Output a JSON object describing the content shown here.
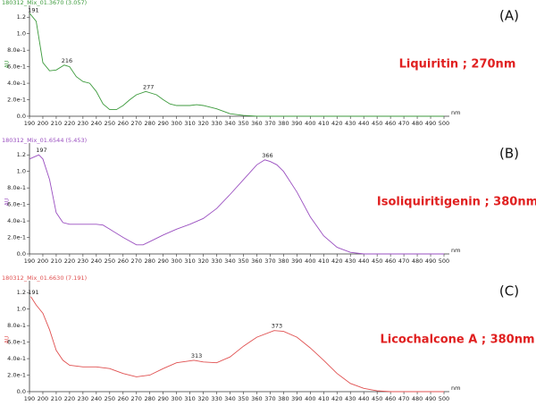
{
  "chart_data": [
    {
      "type": "line",
      "title": "180312_Mix_01.3670 (3.057)",
      "panel_label": "(A)",
      "annotation": "Liquiritin ; 270nm",
      "x_unit": "nm",
      "y_label": "AU",
      "peaks": [
        191,
        216,
        277
      ],
      "x": [
        190,
        195,
        200,
        205,
        210,
        216,
        220,
        225,
        230,
        235,
        240,
        245,
        250,
        255,
        260,
        265,
        270,
        277,
        285,
        290,
        295,
        300,
        310,
        315,
        320,
        330,
        340,
        350,
        360,
        400,
        450,
        500
      ],
      "series": [
        {
          "color": "#3c9a3c",
          "values": [
            1.25,
            1.15,
            0.65,
            0.55,
            0.56,
            0.62,
            0.6,
            0.48,
            0.42,
            0.4,
            0.3,
            0.15,
            0.08,
            0.08,
            0.13,
            0.2,
            0.26,
            0.3,
            0.26,
            0.2,
            0.15,
            0.13,
            0.13,
            0.14,
            0.13,
            0.09,
            0.03,
            0.01,
            0,
            0,
            0,
            0
          ]
        }
      ],
      "xlim": [
        190,
        500
      ],
      "ylim": [
        0,
        1.3
      ],
      "xticks": [
        190,
        200,
        210,
        220,
        230,
        240,
        250,
        260,
        270,
        280,
        290,
        300,
        310,
        320,
        330,
        340,
        350,
        360,
        370,
        380,
        390,
        400,
        410,
        420,
        430,
        440,
        450,
        460,
        470,
        480,
        490,
        500
      ],
      "yticks": [
        {
          "value": 0,
          "label": "0.0"
        },
        {
          "value": 0.2,
          "label": "2.0e-1"
        },
        {
          "value": 0.4,
          "label": "4.0e-1"
        },
        {
          "value": 0.6,
          "label": "6.0e-1"
        },
        {
          "value": 0.8,
          "label": "8.0e-1"
        },
        {
          "value": 1,
          "label": "1.0"
        },
        1.2
      ]
    },
    {
      "type": "line",
      "title": "180312_Mix_01.6544 (5.453)",
      "panel_label": "(B)",
      "annotation": "Isoliquiritigenin ; 380nm",
      "x_unit": "nm",
      "y_label": "AU",
      "peaks": [
        197,
        366
      ],
      "x": [
        190,
        197,
        200,
        205,
        210,
        215,
        220,
        240,
        245,
        250,
        260,
        270,
        275,
        280,
        290,
        300,
        310,
        320,
        330,
        340,
        350,
        360,
        366,
        370,
        375,
        380,
        390,
        400,
        410,
        420,
        430,
        440,
        500
      ],
      "series": [
        {
          "color": "#9a4fc0",
          "values": [
            1.15,
            1.2,
            1.15,
            0.9,
            0.5,
            0.38,
            0.36,
            0.36,
            0.35,
            0.3,
            0.2,
            0.11,
            0.11,
            0.15,
            0.23,
            0.3,
            0.36,
            0.43,
            0.55,
            0.72,
            0.9,
            1.08,
            1.14,
            1.12,
            1.08,
            1.0,
            0.75,
            0.45,
            0.22,
            0.08,
            0.02,
            0,
            0
          ]
        }
      ],
      "xlim": [
        190,
        500
      ],
      "ylim": [
        0,
        1.3
      ],
      "xticks": [
        190,
        200,
        210,
        220,
        230,
        240,
        250,
        260,
        270,
        280,
        290,
        300,
        310,
        320,
        330,
        340,
        350,
        360,
        370,
        380,
        390,
        400,
        410,
        420,
        430,
        440,
        450,
        460,
        470,
        480,
        490,
        500
      ],
      "yticks": [
        {
          "value": 0,
          "label": "0.0"
        },
        {
          "value": 0.2,
          "label": "2.0e-1"
        },
        {
          "value": 0.4,
          "label": "4.0e-1"
        },
        {
          "value": 0.6,
          "label": "6.0e-1"
        },
        {
          "value": 0.8,
          "label": "8.0e-1"
        },
        {
          "value": 1,
          "label": "1.0"
        },
        1.2
      ]
    },
    {
      "type": "line",
      "title": "180312_Mix_01.6630 (7.191)",
      "panel_label": "(C)",
      "annotation": "Licochalcone A ; 380nm",
      "x_unit": "nm",
      "y_label": "AU",
      "peaks": [
        191,
        313,
        373
      ],
      "x": [
        191,
        195,
        200,
        205,
        210,
        215,
        220,
        230,
        240,
        250,
        260,
        270,
        280,
        290,
        300,
        313,
        320,
        330,
        340,
        350,
        360,
        373,
        380,
        390,
        400,
        410,
        420,
        430,
        440,
        450,
        460,
        500
      ],
      "series": [
        {
          "color": "#e05050",
          "values": [
            1.15,
            1.05,
            0.95,
            0.75,
            0.5,
            0.38,
            0.32,
            0.3,
            0.3,
            0.28,
            0.22,
            0.18,
            0.2,
            0.28,
            0.35,
            0.38,
            0.36,
            0.35,
            0.42,
            0.55,
            0.66,
            0.74,
            0.73,
            0.66,
            0.53,
            0.38,
            0.22,
            0.1,
            0.04,
            0.01,
            0,
            0
          ]
        }
      ],
      "xlim": [
        190,
        500
      ],
      "ylim": [
        0,
        1.3
      ],
      "xticks": [
        190,
        200,
        210,
        220,
        230,
        240,
        250,
        260,
        270,
        280,
        290,
        300,
        310,
        320,
        330,
        340,
        350,
        360,
        370,
        380,
        390,
        400,
        410,
        420,
        430,
        440,
        450,
        460,
        470,
        480,
        490,
        500
      ],
      "yticks": [
        {
          "value": 0,
          "label": "0.0"
        },
        {
          "value": 0.2,
          "label": "2.0e-1"
        },
        {
          "value": 0.4,
          "label": "4.0e-1"
        },
        {
          "value": 0.6,
          "label": "6.0e-1"
        },
        {
          "value": 0.8,
          "label": "8.0e-1"
        },
        {
          "value": 1,
          "label": "1.0"
        },
        1.2
      ]
    }
  ]
}
